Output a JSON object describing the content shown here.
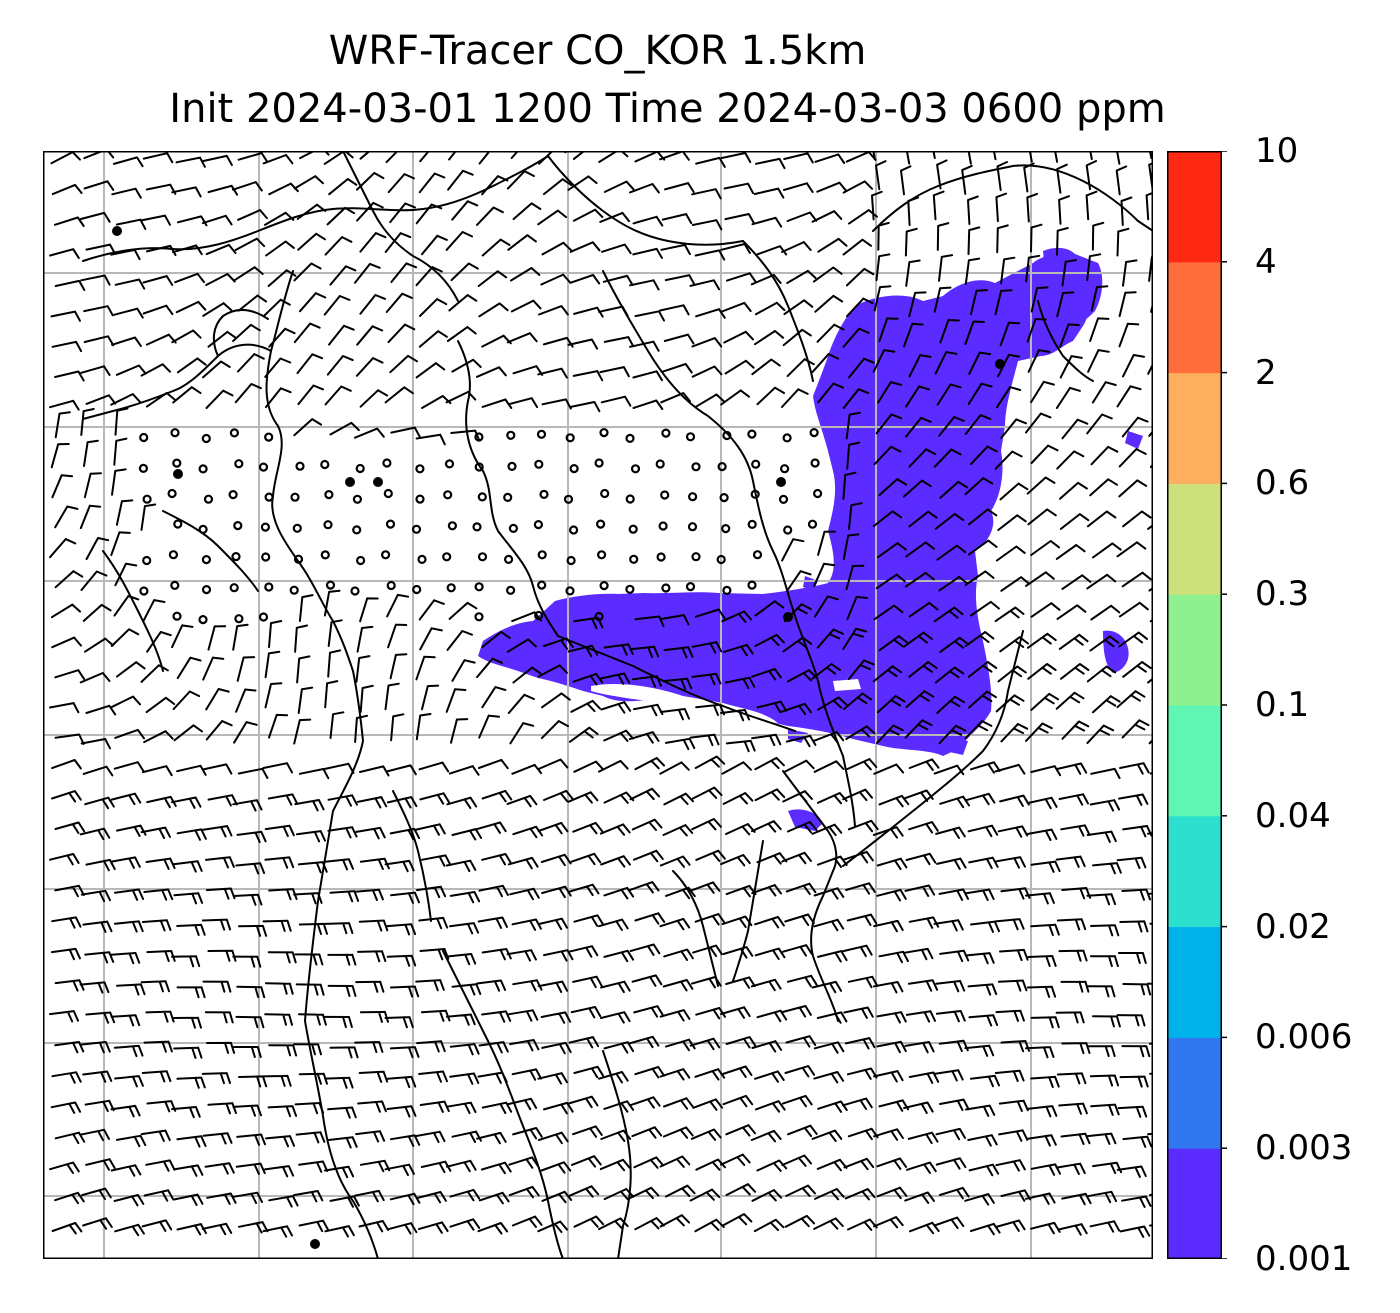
{
  "title": {
    "line1": "WRF-Tracer CO_KOR 1.5km",
    "line2": "Init 2024-03-01 1200 Time 2024-03-03 0600 ppm"
  },
  "colorbar": {
    "levels": [
      "0.001",
      "0.003",
      "0.006",
      "0.02",
      "0.04",
      "0.1",
      "0.3",
      "0.6",
      "2",
      "4",
      "10"
    ],
    "colors": [
      "#5b2bff",
      "#3178f0",
      "#00b2ea",
      "#2ddfcf",
      "#5ff5b3",
      "#8ef08e",
      "#cde07c",
      "#fdaf5f",
      "#ff6e3a",
      "#ff2813"
    ]
  },
  "map": {
    "plume_level": "0.001",
    "plume_color": "#5b2bff",
    "grid_color": "#b8b8b8",
    "coast_color": "#000000"
  }
}
